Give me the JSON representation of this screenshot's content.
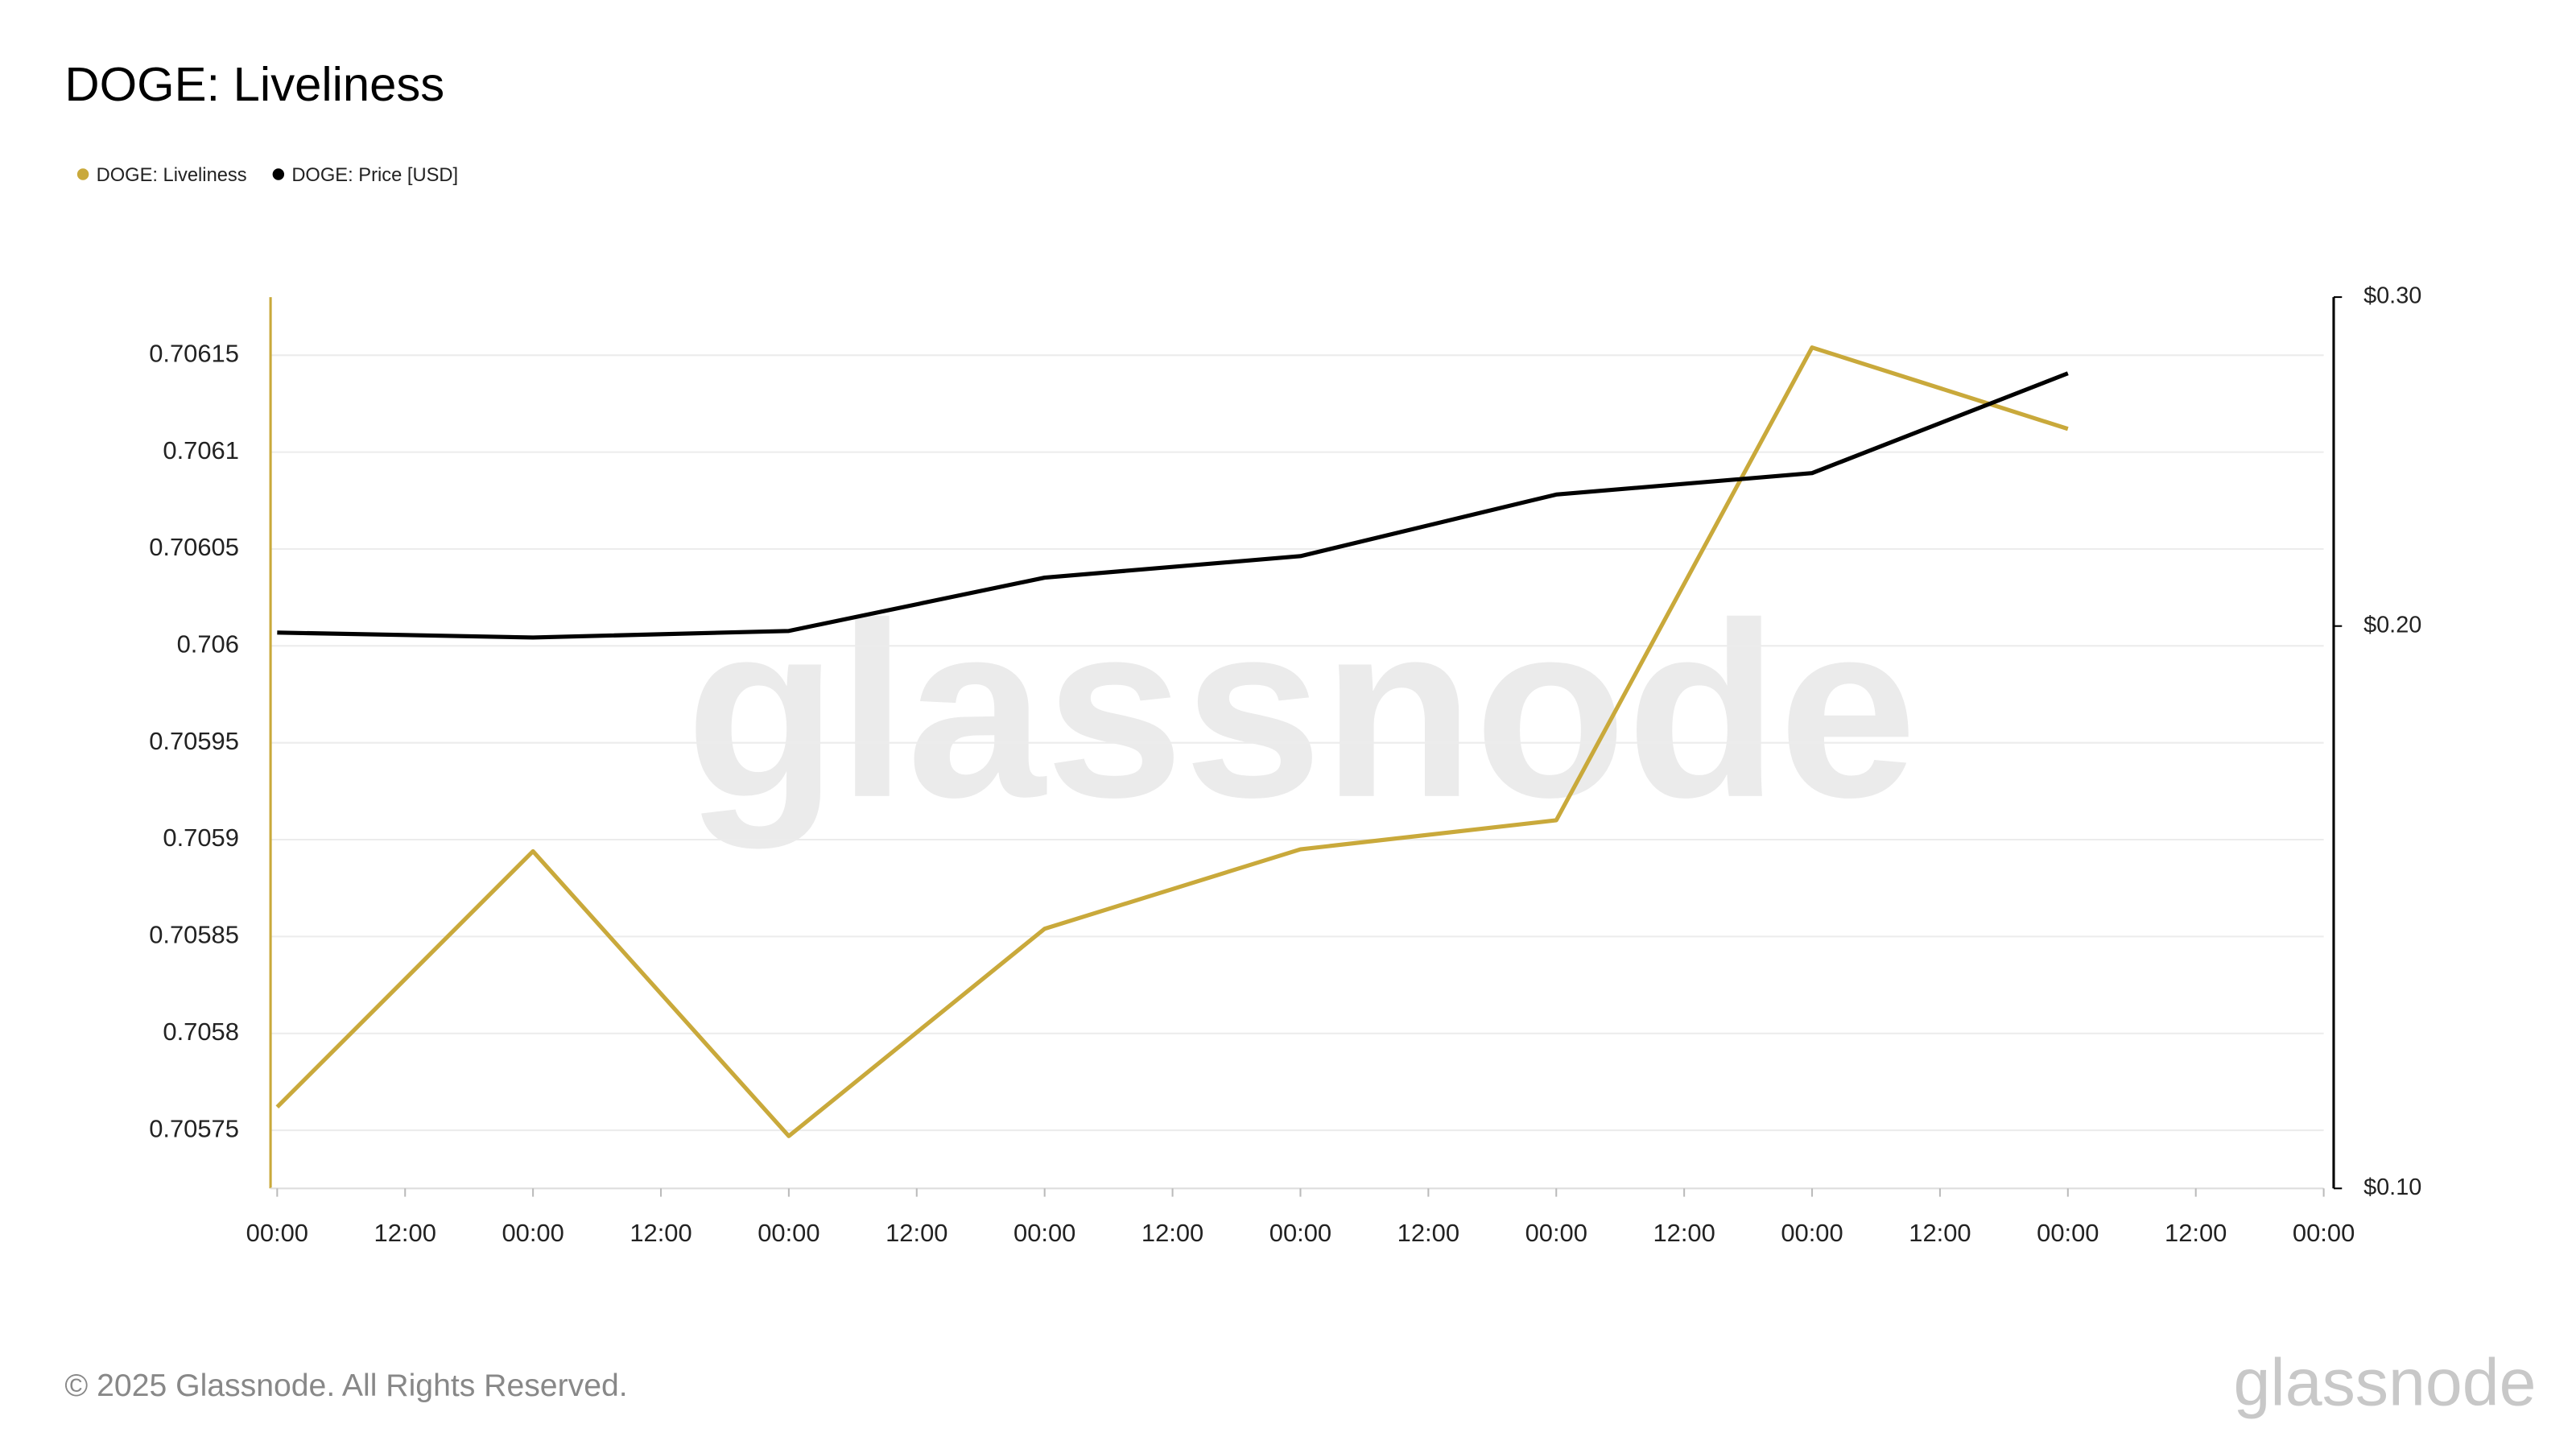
{
  "chart_data": {
    "type": "line",
    "title": "DOGE: Liveliness",
    "watermark": "glassnode",
    "footer": "© 2025 Glassnode. All Rights Reserved.",
    "logo": "glassnode",
    "legend": "top-left",
    "grid": true,
    "x": [
      0,
      2,
      4,
      6,
      8,
      10,
      12,
      14
    ],
    "xlim": [
      0,
      16
    ],
    "xticks": [
      {
        "value": 0,
        "label": "00:00"
      },
      {
        "value": 1,
        "label": "12:00"
      },
      {
        "value": 2,
        "label": "00:00"
      },
      {
        "value": 3,
        "label": "12:00"
      },
      {
        "value": 4,
        "label": "00:00"
      },
      {
        "value": 5,
        "label": "12:00"
      },
      {
        "value": 6,
        "label": "00:00"
      },
      {
        "value": 7,
        "label": "12:00"
      },
      {
        "value": 8,
        "label": "00:00"
      },
      {
        "value": 9,
        "label": "12:00"
      },
      {
        "value": 10,
        "label": "00:00"
      },
      {
        "value": 11,
        "label": "12:00"
      },
      {
        "value": 12,
        "label": "00:00"
      },
      {
        "value": 13,
        "label": "12:00"
      },
      {
        "value": 14,
        "label": "00:00"
      },
      {
        "value": 15,
        "label": "12:00"
      },
      {
        "value": 16,
        "label": "00:00"
      }
    ],
    "ylim": [
      0.70572,
      0.70618
    ],
    "yticks": [
      0.70575,
      0.7058,
      0.70585,
      0.7059,
      0.70595,
      0.706,
      0.70605,
      0.7061,
      0.70615
    ],
    "y2lim": [
      0.1,
      0.3
    ],
    "y2log": true,
    "y2ticks": [
      {
        "value": 0.1,
        "label": "$0.10"
      },
      {
        "value": 0.2,
        "label": "$0.20"
      },
      {
        "value": 0.3,
        "label": "$0.30"
      }
    ],
    "series": [
      {
        "name": "DOGE: Liveliness",
        "color": "#c9a93b",
        "values": [
          0.705762,
          0.705894,
          0.705747,
          0.705854,
          0.705895,
          0.70591,
          0.706154,
          0.706112
        ]
      },
      {
        "name": "DOGE: Price [USD]",
        "color": "#000000",
        "axis": "y2",
        "values": [
          0.1984,
          0.1972,
          0.1988,
          0.2123,
          0.218,
          0.2352,
          0.2415,
          0.2731
        ]
      }
    ]
  }
}
